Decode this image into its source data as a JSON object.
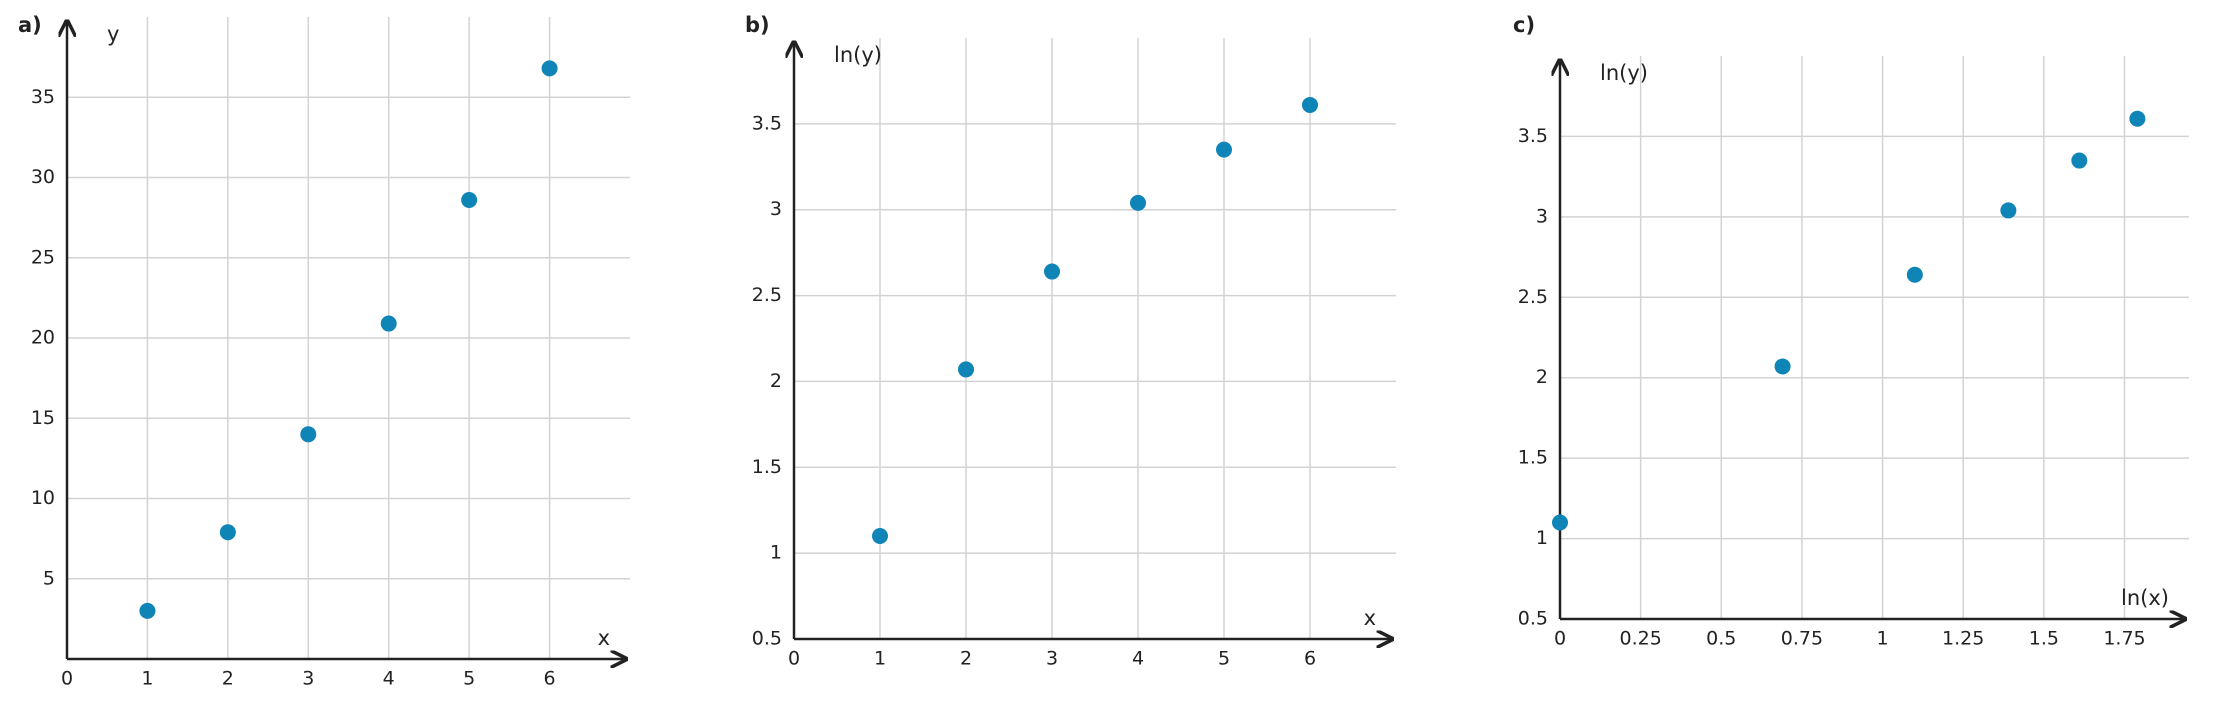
{
  "chart_data": [
    {
      "type": "scatter",
      "label": "a)",
      "x_label": "x",
      "y_label": "y",
      "color": "#0f84b6",
      "grid": true,
      "x": [
        1,
        2,
        3,
        4,
        5,
        6
      ],
      "y": [
        3,
        7.9,
        14,
        20.9,
        28.6,
        36.8
      ],
      "xlim": [
        0,
        7
      ],
      "ylim": [
        0,
        40
      ],
      "xticks": [
        0,
        1,
        2,
        3,
        4,
        5,
        6
      ],
      "yticks": [
        5,
        10,
        15,
        20,
        25,
        30,
        35
      ]
    },
    {
      "type": "scatter",
      "label": "b)",
      "x_label": "x",
      "y_label": "ln(y)",
      "color": "#0f84b6",
      "grid": true,
      "x": [
        1,
        2,
        3,
        4,
        5,
        6
      ],
      "y": [
        1.1,
        2.07,
        2.64,
        3.04,
        3.35,
        3.61
      ],
      "xlim": [
        0,
        7
      ],
      "ylim": [
        0.5,
        4
      ],
      "xticks": [
        0,
        1,
        2,
        3,
        4,
        5,
        6
      ],
      "yticks": [
        0.5,
        1,
        1.5,
        2,
        2.5,
        3,
        3.5
      ]
    },
    {
      "type": "scatter",
      "label": "c)",
      "x_label": "ln(x)",
      "y_label": "ln(y)",
      "color": "#0f84b6",
      "grid": true,
      "x": [
        0,
        0.69,
        1.1,
        1.39,
        1.61,
        1.79
      ],
      "y": [
        1.1,
        2.07,
        2.64,
        3.04,
        3.35,
        3.61
      ],
      "xlim": [
        0,
        1.95
      ],
      "ylim": [
        0.5,
        4
      ],
      "xticks": [
        0,
        0.25,
        0.5,
        0.75,
        1,
        1.25,
        1.5,
        1.75
      ],
      "yticks": [
        0.5,
        1,
        1.5,
        2,
        2.5,
        3,
        3.5
      ]
    }
  ]
}
